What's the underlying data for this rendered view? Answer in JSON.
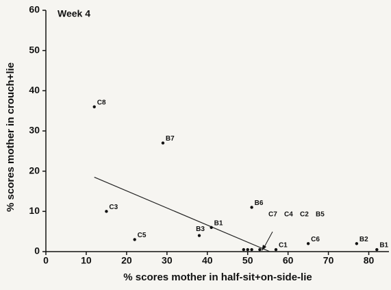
{
  "chart_data": {
    "type": "scatter",
    "title": "Week 4",
    "x_label": "% scores mother in half-sit+on-side-lie",
    "y_label": "% scores mother in crouch+lie",
    "xlim": [
      0,
      85
    ],
    "ylim": [
      0,
      60
    ],
    "xticks": [
      0,
      10,
      20,
      30,
      40,
      50,
      60,
      70,
      80
    ],
    "yticks": [
      0,
      10,
      20,
      30,
      40,
      50,
      60
    ],
    "color": "#111111",
    "series": [
      {
        "labels": [
          "C8",
          "B7",
          "C3",
          "C5",
          "B3",
          "B1",
          "B6",
          "C7",
          "C4",
          "C2",
          "B5",
          "C1",
          "C6",
          "B2",
          "B1"
        ],
        "x": [
          12,
          29,
          15,
          22,
          38,
          41,
          51,
          49,
          50,
          51,
          53,
          57,
          65,
          77,
          82
        ],
        "values": [
          36,
          27,
          10,
          3,
          4,
          6,
          11,
          0.5,
          0.5,
          0.5,
          0.5,
          0.5,
          2,
          2,
          0.5
        ]
      }
    ],
    "trend_line": {
      "x": [
        12,
        55.5
      ],
      "values": [
        18.5,
        0
      ]
    }
  }
}
